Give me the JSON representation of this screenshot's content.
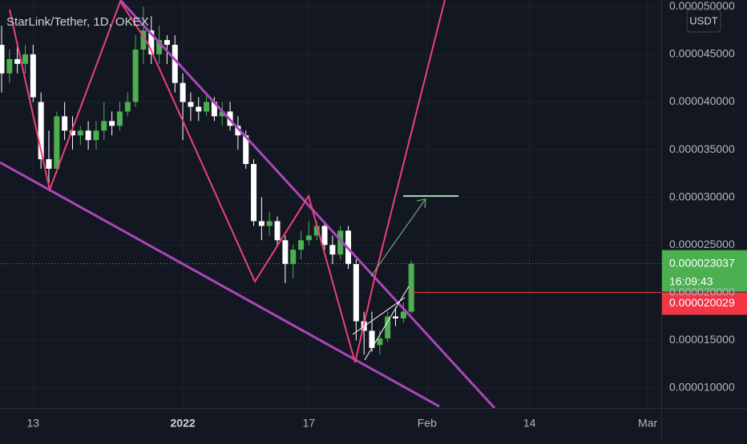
{
  "chart_data": {
    "type": "candlestick",
    "title": "StarLink/Tether, 1D, OKEX",
    "currency": "USDT",
    "up_color": "#4caf50",
    "down_color": "#ffffff",
    "grid": true,
    "categories": [
      null,
      null,
      null,
      null,
      "13",
      null,
      null,
      null,
      null,
      null,
      null,
      null,
      null,
      null,
      null,
      null,
      null,
      null,
      null,
      null,
      null,
      null,
      null,
      "2022",
      null,
      null,
      null,
      null,
      null,
      null,
      null,
      null,
      null,
      null,
      null,
      null,
      null,
      null,
      null,
      "17",
      null,
      null,
      null,
      null,
      null,
      null,
      null,
      null,
      null,
      null,
      null,
      null,
      null,
      null,
      "Feb",
      null,
      null,
      null,
      null,
      null,
      null,
      null,
      null,
      null,
      null,
      null,
      null,
      "14",
      null,
      null,
      null,
      null,
      null,
      null,
      null,
      null,
      null,
      null,
      null,
      null,
      null,
      null,
      "Mar",
      null
    ],
    "open": [
      4.6e-05,
      4.3e-05,
      4.45e-05,
      4.4e-05,
      4.5e-05,
      4e-05,
      3.4e-05,
      3.3e-05,
      3.85e-05,
      3.7e-05,
      3.65e-05,
      3.7e-05,
      3.6e-05,
      3.7e-05,
      3.8e-05,
      3.75e-05,
      3.9e-05,
      4e-05,
      4.55e-05,
      4.75e-05,
      4.5e-05,
      4.65e-05,
      4.6e-05,
      4.2e-05,
      4e-05,
      3.95e-05,
      3.9e-05,
      4e-05,
      3.85e-05,
      3.9e-05,
      3.75e-05,
      3.65e-05,
      3.35e-05,
      2.75e-05,
      2.7e-05,
      2.75e-05,
      2.55e-05,
      2.3e-05,
      2.45e-05,
      2.55e-05,
      2.6e-05,
      2.7e-05,
      2.5e-05,
      2.4e-05,
      2.65e-05,
      2.3e-05,
      1.7e-05,
      1.6e-05,
      1.45e-05,
      1.52e-05,
      1.75e-05,
      1.73e-05,
      1.8e-05,
      null,
      null,
      null,
      null,
      null,
      null,
      null,
      null,
      null,
      null,
      null,
      null,
      null,
      null,
      null,
      null,
      null,
      null,
      null,
      null,
      null,
      null,
      null,
      null,
      null,
      null,
      null,
      null,
      null,
      null,
      null
    ],
    "high": [
      4.8e-05,
      4.55e-05,
      4.6e-05,
      4.6e-05,
      4.6e-05,
      4.1e-05,
      3.7e-05,
      3.9e-05,
      4e-05,
      3.85e-05,
      3.75e-05,
      3.8e-05,
      3.8e-05,
      4e-05,
      3.9e-05,
      4e-05,
      4.1e-05,
      4.7e-05,
      5e-05,
      4.9e-05,
      4.8e-05,
      4.7e-05,
      4.7e-05,
      4.3e-05,
      4.1e-05,
      4.05e-05,
      4.1e-05,
      4.05e-05,
      4e-05,
      4e-05,
      3.85e-05,
      3.7e-05,
      3.4e-05,
      3e-05,
      2.85e-05,
      2.8e-05,
      2.6e-05,
      2.5e-05,
      2.65e-05,
      2.75e-05,
      2.75e-05,
      2.75e-05,
      2.6e-05,
      2.7e-05,
      2.7e-05,
      2.35e-05,
      1.8e-05,
      1.8e-05,
      1.6e-05,
      1.8e-05,
      1.85e-05,
      1.9e-05,
      2.34e-05,
      null,
      null,
      null,
      null,
      null,
      null,
      null,
      null,
      null,
      null,
      null,
      null,
      null,
      null,
      null,
      null,
      null,
      null,
      null,
      null,
      null,
      null,
      null,
      null,
      null,
      null,
      null,
      null,
      null,
      null,
      null
    ],
    "low": [
      4.1e-05,
      4.2e-05,
      4.3e-05,
      4.3e-05,
      4e-05,
      3.3e-05,
      3.15e-05,
      3.25e-05,
      3.6e-05,
      3.5e-05,
      3.55e-05,
      3.5e-05,
      3.5e-05,
      3.6e-05,
      3.65e-05,
      3.7e-05,
      3.85e-05,
      3.95e-05,
      4.4e-05,
      4.4e-05,
      4.4e-05,
      4.4e-05,
      4.1e-05,
      3.6e-05,
      3.8e-05,
      3.8e-05,
      3.85e-05,
      3.8e-05,
      3.75e-05,
      3.7e-05,
      3.5e-05,
      3.3e-05,
      2.7e-05,
      2.55e-05,
      2.6e-05,
      2.5e-05,
      2.1e-05,
      2.15e-05,
      2.35e-05,
      2.5e-05,
      2.55e-05,
      2.45e-05,
      2.3e-05,
      2.35e-05,
      2.25e-05,
      1.5e-05,
      1.35e-05,
      1.38e-05,
      1.35e-05,
      1.48e-05,
      1.65e-05,
      1.68e-05,
      1.78e-05,
      null,
      null,
      null,
      null,
      null,
      null,
      null,
      null,
      null,
      null,
      null,
      null,
      null,
      null,
      null,
      null,
      null,
      null,
      null,
      null,
      null,
      null,
      null,
      null,
      null,
      null,
      null,
      null,
      null,
      null,
      null
    ],
    "close": [
      4.3e-05,
      4.45e-05,
      4.4e-05,
      4.5e-05,
      4.05e-05,
      3.4e-05,
      3.3e-05,
      3.85e-05,
      3.7e-05,
      3.65e-05,
      3.7e-05,
      3.6e-05,
      3.7e-05,
      3.8e-05,
      3.75e-05,
      3.9e-05,
      4e-05,
      4.55e-05,
      4.75e-05,
      4.5e-05,
      4.65e-05,
      4.6e-05,
      4.2e-05,
      4e-05,
      3.95e-05,
      3.9e-05,
      4e-05,
      3.85e-05,
      3.9e-05,
      3.75e-05,
      3.65e-05,
      3.35e-05,
      2.75e-05,
      2.7e-05,
      2.75e-05,
      2.55e-05,
      2.3e-05,
      2.45e-05,
      2.55e-05,
      2.6e-05,
      2.7e-05,
      2.5e-05,
      2.4e-05,
      2.65e-05,
      2.3e-05,
      1.7e-05,
      1.6e-05,
      1.42e-05,
      1.52e-05,
      1.75e-05,
      1.73e-05,
      1.8e-05,
      2.3037e-05,
      null,
      null,
      null,
      null,
      null,
      null,
      null,
      null,
      null,
      null,
      null,
      null,
      null,
      null,
      null,
      null,
      null,
      null,
      null,
      null,
      null,
      null,
      null,
      null,
      null,
      null,
      null,
      null,
      null,
      null,
      null
    ],
    "ylim": [
      7.9e-06,
      5.07e-05
    ],
    "yticks": [
      {
        "value": 1e-05,
        "label": "0.000010000"
      },
      {
        "value": 1.5e-05,
        "label": "0.000015000"
      },
      {
        "value": 2e-05,
        "label": "0.000020000"
      },
      {
        "value": 2.5e-05,
        "label": "0.000025000"
      },
      {
        "value": 3e-05,
        "label": "0.000030000"
      },
      {
        "value": 3.5e-05,
        "label": "0.000035000"
      },
      {
        "value": 4e-05,
        "label": "0.000040000"
      },
      {
        "value": 4.5e-05,
        "label": "0.000045000"
      },
      {
        "value": 5e-05,
        "label": "0.000050000"
      }
    ],
    "price_labels": [
      {
        "value": 2.3037e-05,
        "label": "0.000023037",
        "countdown": "16:09:43",
        "color": "#4caf50"
      },
      {
        "value": 2.0029e-05,
        "label": "0.000020029",
        "color": "#f23645"
      }
    ]
  }
}
